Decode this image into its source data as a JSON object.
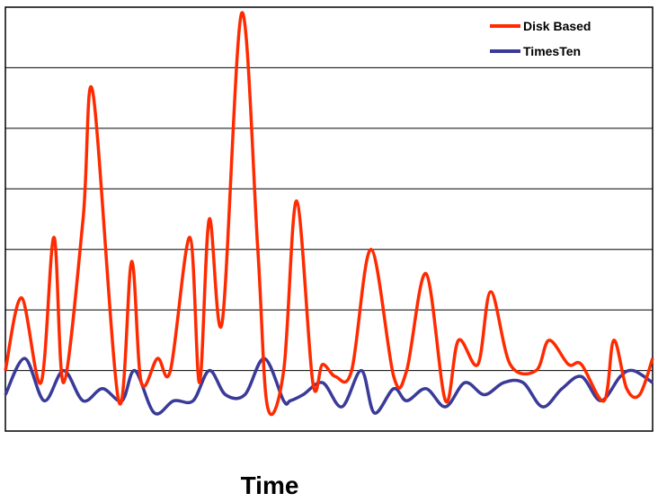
{
  "chart_data": {
    "type": "line",
    "title": "",
    "xlabel": "Time",
    "ylabel": "",
    "grid": true,
    "gridlines": 7,
    "legend_position": "top-right",
    "x_range": [
      0,
      100
    ],
    "y_range": [
      0,
      7
    ],
    "series": [
      {
        "name": "Disk Based",
        "color": "#ff2a00",
        "x": [
          0,
          2.5,
          5.5,
          7.5,
          9,
          12,
          13.5,
          17.5,
          19.5,
          21,
          23.5,
          25.5,
          28.5,
          30,
          31.5,
          33.5,
          36.5,
          39,
          40.5,
          43,
          45,
          47.5,
          49,
          51,
          53.5,
          56.5,
          60,
          62,
          65,
          68,
          70,
          73,
          75,
          78,
          82,
          84,
          87,
          89,
          92.5,
          94,
          96,
          98,
          100
        ],
        "y": [
          1.0,
          2.2,
          0.8,
          3.2,
          0.8,
          3.5,
          5.6,
          0.5,
          2.8,
          0.8,
          1.2,
          1.0,
          3.2,
          0.8,
          3.5,
          1.8,
          6.9,
          3.0,
          0.4,
          1.0,
          3.8,
          0.8,
          1.1,
          0.9,
          1.0,
          3.0,
          0.9,
          1.0,
          2.6,
          0.5,
          1.5,
          1.1,
          2.3,
          1.1,
          1.0,
          1.5,
          1.1,
          1.1,
          0.5,
          1.5,
          0.7,
          0.6,
          1.2
        ]
      },
      {
        "name": "TimesTen",
        "color": "#3a3a99",
        "x": [
          0,
          3,
          6,
          9,
          12,
          15,
          18,
          20,
          23,
          26,
          29,
          31.5,
          34,
          37,
          40,
          43,
          44,
          46,
          49,
          52,
          55,
          57,
          60,
          62,
          65,
          68,
          71,
          74,
          77,
          80,
          83,
          86,
          89,
          92,
          95,
          97,
          100
        ],
        "y": [
          0.6,
          1.2,
          0.5,
          1.0,
          0.5,
          0.7,
          0.5,
          1.0,
          0.3,
          0.5,
          0.5,
          1.0,
          0.6,
          0.6,
          1.2,
          0.5,
          0.5,
          0.6,
          0.8,
          0.4,
          1.0,
          0.3,
          0.7,
          0.5,
          0.7,
          0.4,
          0.8,
          0.6,
          0.8,
          0.8,
          0.4,
          0.7,
          0.9,
          0.5,
          0.9,
          1.0,
          0.8
        ]
      }
    ]
  }
}
